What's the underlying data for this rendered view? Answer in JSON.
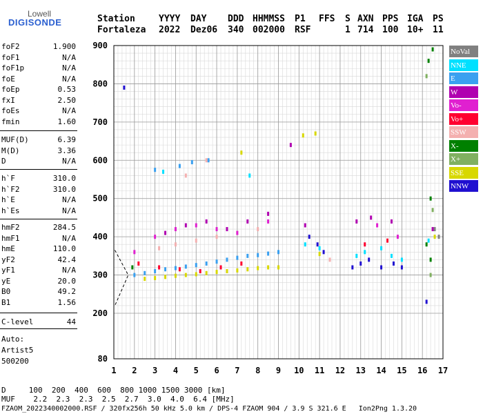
{
  "logo": {
    "line1": "Lowell",
    "line2": "DIGISONDE"
  },
  "header": {
    "labels": [
      "Station",
      "YYYY",
      "DAY",
      "DDD",
      "HHMMSS",
      "P1",
      "FFS",
      "S",
      "AXN",
      "PPS",
      "IGA",
      "PS"
    ],
    "values": [
      "Fortaleza",
      "2022",
      "Dez06",
      "340",
      "002000",
      "RSF",
      "1",
      "714",
      "100",
      "10+",
      "11"
    ]
  },
  "params": {
    "group1": [
      {
        "name": "foF2",
        "value": "1.900"
      },
      {
        "name": "foF1",
        "value": "N/A"
      },
      {
        "name": "foF1p",
        "value": "N/A"
      },
      {
        "name": "foE",
        "value": "N/A"
      },
      {
        "name": "foEp",
        "value": "0.53"
      },
      {
        "name": "fxI",
        "value": "2.50"
      },
      {
        "name": "foEs",
        "value": "N/A"
      },
      {
        "name": "fmin",
        "value": "1.60"
      }
    ],
    "group2": [
      {
        "name": "MUF(D)",
        "value": "6.39"
      },
      {
        "name": "M(D)",
        "value": "3.36"
      },
      {
        "name": "D",
        "value": "N/A"
      }
    ],
    "group3": [
      {
        "name": "h`F",
        "value": "310.0"
      },
      {
        "name": "h`F2",
        "value": "310.0"
      },
      {
        "name": "h`E",
        "value": "N/A"
      },
      {
        "name": "h`Es",
        "value": "N/A"
      }
    ],
    "group4": [
      {
        "name": "hmF2",
        "value": "284.5"
      },
      {
        "name": "hmF1",
        "value": "N/A"
      },
      {
        "name": "hmE",
        "value": "110.0"
      },
      {
        "name": "yF2",
        "value": "42.4"
      },
      {
        "name": "yF1",
        "value": "N/A"
      },
      {
        "name": "yE",
        "value": "20.0"
      },
      {
        "name": "B0",
        "value": "49.2"
      },
      {
        "name": "B1",
        "value": "1.56"
      }
    ],
    "group5": [
      {
        "name": "C-level",
        "value": "44"
      }
    ]
  },
  "auto": {
    "line1": "Auto:",
    "line2": "Artist5",
    "line3": "500200"
  },
  "legend": [
    {
      "label": "NoVal",
      "color": "#808080"
    },
    {
      "label": "NNE",
      "color": "#00e0ff"
    },
    {
      "label": "E",
      "color": "#3aa0f0"
    },
    {
      "label": "W",
      "color": "#b000b0"
    },
    {
      "label": "Vo-",
      "color": "#e020d0"
    },
    {
      "label": "Vo+",
      "color": "#ff0030"
    },
    {
      "label": "SSW",
      "color": "#f4b0b0"
    },
    {
      "label": "X-",
      "color": "#008000"
    },
    {
      "label": "X+",
      "color": "#80b060"
    },
    {
      "label": "SSE",
      "color": "#d8d800"
    },
    {
      "label": "NNW",
      "color": "#2010d0"
    }
  ],
  "bottom": {
    "d_row": "D     100  200  400  600  800 1000 1500 3000 [km]",
    "muf_row": "MUF    2.2  2.3  2.3  2.5  2.7  3.0  4.0  6.4 [MHz]",
    "footer": "FZAOM_2022340002000.RSF / 320fx256h 50 kHz 5.0 km / DPS-4 FZAOM 904 / 3.9 S 321.6 E   Ion2Png 1.3.20"
  },
  "chart_data": {
    "type": "scatter",
    "xlim": [
      1,
      17
    ],
    "ylim": [
      80,
      900
    ],
    "xticks": [
      "1",
      "2",
      "3",
      "4",
      "5",
      "6",
      "7",
      "8",
      "9",
      "10",
      "11",
      "12",
      "13",
      "14",
      "15",
      "16",
      "17"
    ],
    "yticks": [
      "80",
      "200",
      "300",
      "400",
      "500",
      "600",
      "700",
      "800",
      "900"
    ],
    "grid": true,
    "series": [
      {
        "name": "E",
        "color": "#3aa0f0",
        "points": [
          [
            2.0,
            300
          ],
          [
            2.5,
            305
          ],
          [
            3.0,
            310
          ],
          [
            3.5,
            315
          ],
          [
            4.0,
            318
          ],
          [
            4.5,
            322
          ],
          [
            5.0,
            326
          ],
          [
            5.5,
            330
          ],
          [
            6.0,
            335
          ],
          [
            6.5,
            340
          ],
          [
            7.0,
            345
          ],
          [
            7.5,
            350
          ],
          [
            8.0,
            352
          ],
          [
            8.5,
            356
          ],
          [
            9.0,
            360
          ],
          [
            4.2,
            585
          ],
          [
            4.8,
            595
          ],
          [
            5.6,
            600
          ],
          [
            3.0,
            575
          ]
        ]
      },
      {
        "name": "NNE",
        "color": "#00e0ff",
        "points": [
          [
            10.3,
            380
          ],
          [
            11.0,
            370
          ],
          [
            12.8,
            350
          ],
          [
            13.2,
            360
          ],
          [
            14.0,
            370
          ],
          [
            14.5,
            350
          ],
          [
            15.0,
            340
          ],
          [
            16.3,
            390
          ],
          [
            7.6,
            560
          ],
          [
            3.4,
            570
          ]
        ]
      },
      {
        "name": "SSE",
        "color": "#d8d800",
        "points": [
          [
            2.5,
            290
          ],
          [
            3.0,
            292
          ],
          [
            3.5,
            295
          ],
          [
            4.0,
            298
          ],
          [
            4.5,
            300
          ],
          [
            5.0,
            302
          ],
          [
            5.5,
            305
          ],
          [
            6.0,
            308
          ],
          [
            6.5,
            310
          ],
          [
            7.0,
            312
          ],
          [
            7.5,
            315
          ],
          [
            8.0,
            318
          ],
          [
            8.5,
            320
          ],
          [
            9.0,
            320
          ],
          [
            10.2,
            665
          ],
          [
            10.8,
            670
          ],
          [
            7.2,
            620
          ],
          [
            11.0,
            355
          ],
          [
            16.6,
            400
          ]
        ]
      },
      {
        "name": "SSW",
        "color": "#f4b0b0",
        "points": [
          [
            3.2,
            370
          ],
          [
            4.0,
            380
          ],
          [
            5.0,
            390
          ],
          [
            6.0,
            400
          ],
          [
            7.0,
            410
          ],
          [
            8.0,
            420
          ],
          [
            4.5,
            560
          ],
          [
            5.5,
            600
          ],
          [
            11.5,
            340
          ]
        ]
      },
      {
        "name": "Vo-",
        "color": "#e020d0",
        "points": [
          [
            2.0,
            360
          ],
          [
            3.0,
            400
          ],
          [
            4.0,
            420
          ],
          [
            5.0,
            430
          ],
          [
            6.0,
            420
          ],
          [
            7.0,
            410
          ],
          [
            8.5,
            440
          ],
          [
            13.8,
            430
          ],
          [
            14.8,
            400
          ]
        ]
      },
      {
        "name": "Vo+",
        "color": "#ff0030",
        "points": [
          [
            2.2,
            330
          ],
          [
            3.2,
            320
          ],
          [
            4.2,
            315
          ],
          [
            5.2,
            310
          ],
          [
            6.2,
            320
          ],
          [
            7.2,
            330
          ],
          [
            13.2,
            380
          ],
          [
            14.3,
            390
          ]
        ]
      },
      {
        "name": "W",
        "color": "#b000b0",
        "points": [
          [
            3.5,
            410
          ],
          [
            4.5,
            430
          ],
          [
            5.5,
            440
          ],
          [
            6.5,
            420
          ],
          [
            7.5,
            440
          ],
          [
            8.5,
            460
          ],
          [
            10.3,
            430
          ],
          [
            12.8,
            440
          ],
          [
            13.5,
            450
          ],
          [
            14.5,
            440
          ],
          [
            16.5,
            420
          ],
          [
            9.6,
            640
          ]
        ]
      },
      {
        "name": "NNW",
        "color": "#2010d0",
        "points": [
          [
            10.5,
            400
          ],
          [
            10.9,
            380
          ],
          [
            11.2,
            360
          ],
          [
            12.6,
            320
          ],
          [
            13.0,
            330
          ],
          [
            13.4,
            340
          ],
          [
            14.0,
            320
          ],
          [
            14.6,
            330
          ],
          [
            15.0,
            320
          ],
          [
            1.5,
            790
          ],
          [
            16.2,
            230
          ]
        ]
      },
      {
        "name": "X-",
        "color": "#008000",
        "points": [
          [
            16.3,
            860
          ],
          [
            16.5,
            890
          ],
          [
            16.4,
            500
          ],
          [
            16.2,
            380
          ],
          [
            16.4,
            340
          ],
          [
            1.9,
            320
          ]
        ]
      },
      {
        "name": "X+",
        "color": "#80b060",
        "points": [
          [
            16.5,
            470
          ],
          [
            16.2,
            820
          ],
          [
            16.4,
            300
          ]
        ]
      },
      {
        "name": "NoVal",
        "color": "#808080",
        "points": [
          [
            16.6,
            420
          ],
          [
            16.8,
            400
          ]
        ]
      }
    ]
  }
}
